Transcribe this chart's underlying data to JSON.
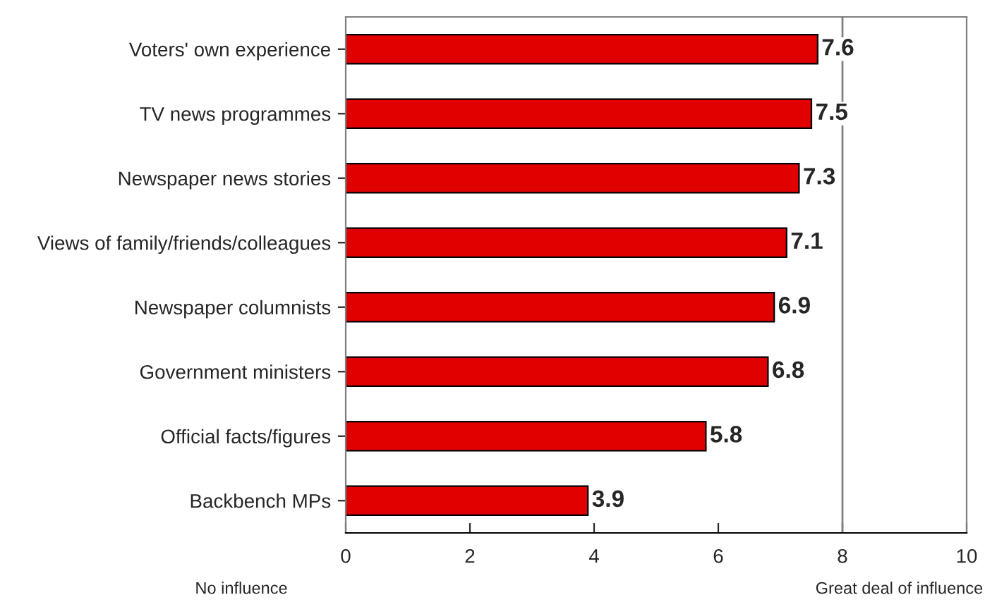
{
  "chart_data": {
    "type": "bar",
    "orientation": "horizontal",
    "categories": [
      "Voters' own experience",
      "TV news programmes",
      "Newspaper news stories",
      "Views of family/friends/colleagues",
      "Newspaper columnists",
      "Government ministers",
      "Official facts/figures",
      "Backbench MPs"
    ],
    "values": [
      7.6,
      7.5,
      7.3,
      7.1,
      6.9,
      6.8,
      5.8,
      3.9
    ],
    "color": "#e00000",
    "xlim": [
      0,
      10
    ],
    "xticks": [
      0,
      2,
      4,
      6,
      8,
      10
    ],
    "data_labels": true,
    "grid": false,
    "ref_lines": [
      {
        "axis": "x",
        "value": 8,
        "color": "#808080"
      }
    ],
    "annotations": [
      "No influence",
      "Great deal of influence"
    ]
  }
}
